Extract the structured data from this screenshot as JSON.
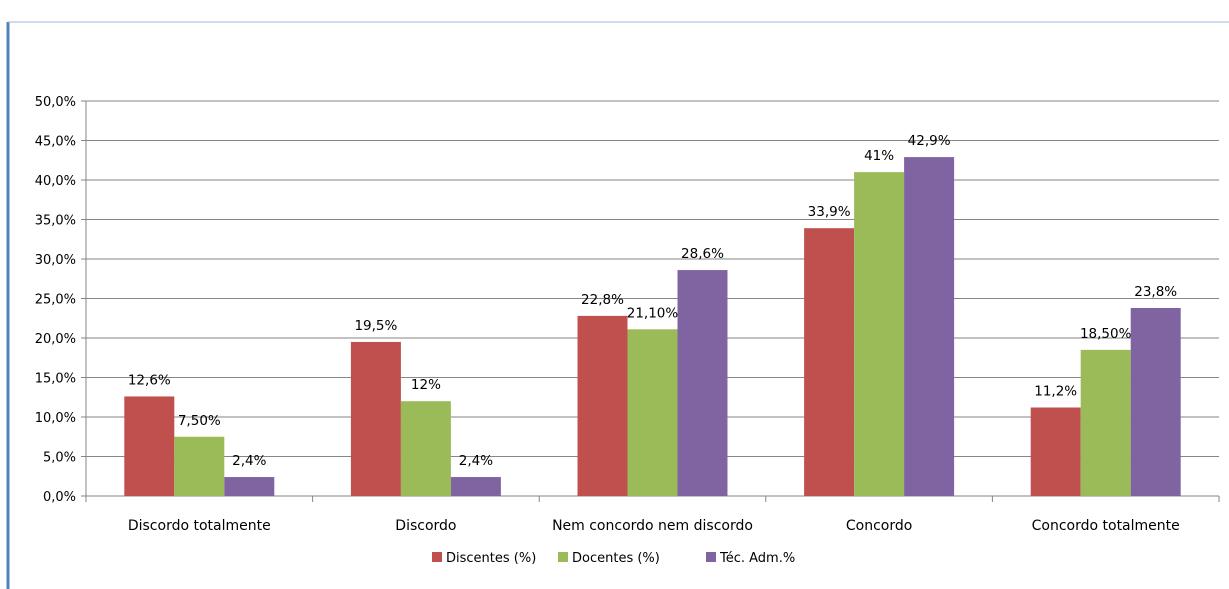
{
  "chart_data": {
    "type": "bar",
    "categories": [
      "Discordo totalmente",
      "Discordo",
      "Nem concordo nem discordo",
      "Concordo",
      "Concordo totalmente"
    ],
    "series": [
      {
        "name": "Discentes (%)",
        "color": "#c0504d",
        "values": [
          12.6,
          19.5,
          22.8,
          33.9,
          11.2
        ],
        "labels": [
          "12,6%",
          "19,5%",
          "22,8%",
          "33,9%",
          "11,2%"
        ]
      },
      {
        "name": "Docentes (%)",
        "color": "#9bbb59",
        "values": [
          7.5,
          12,
          21.1,
          41,
          18.5
        ],
        "labels": [
          "7,50%",
          "12%",
          "21,10%",
          "41%",
          "18,50%"
        ]
      },
      {
        "name": "Téc. Adm.%",
        "color": "#8064a2",
        "values": [
          2.4,
          2.4,
          28.6,
          42.9,
          23.8
        ],
        "labels": [
          "2,4%",
          "2,4%",
          "28,6%",
          "42,9%",
          "23,8%"
        ]
      }
    ],
    "y_ticks": [
      "0,0%",
      "5,0%",
      "10,0%",
      "15,0%",
      "20,0%",
      "25,0%",
      "30,0%",
      "35,0%",
      "40,0%",
      "45,0%",
      "50,0%"
    ],
    "ylim": [
      0,
      50
    ],
    "grid": true,
    "legend": "bottom",
    "title": "",
    "xlabel": "",
    "ylabel": ""
  },
  "colors": {
    "frame_accent": "#4f81bd",
    "gridline": "#868686"
  }
}
